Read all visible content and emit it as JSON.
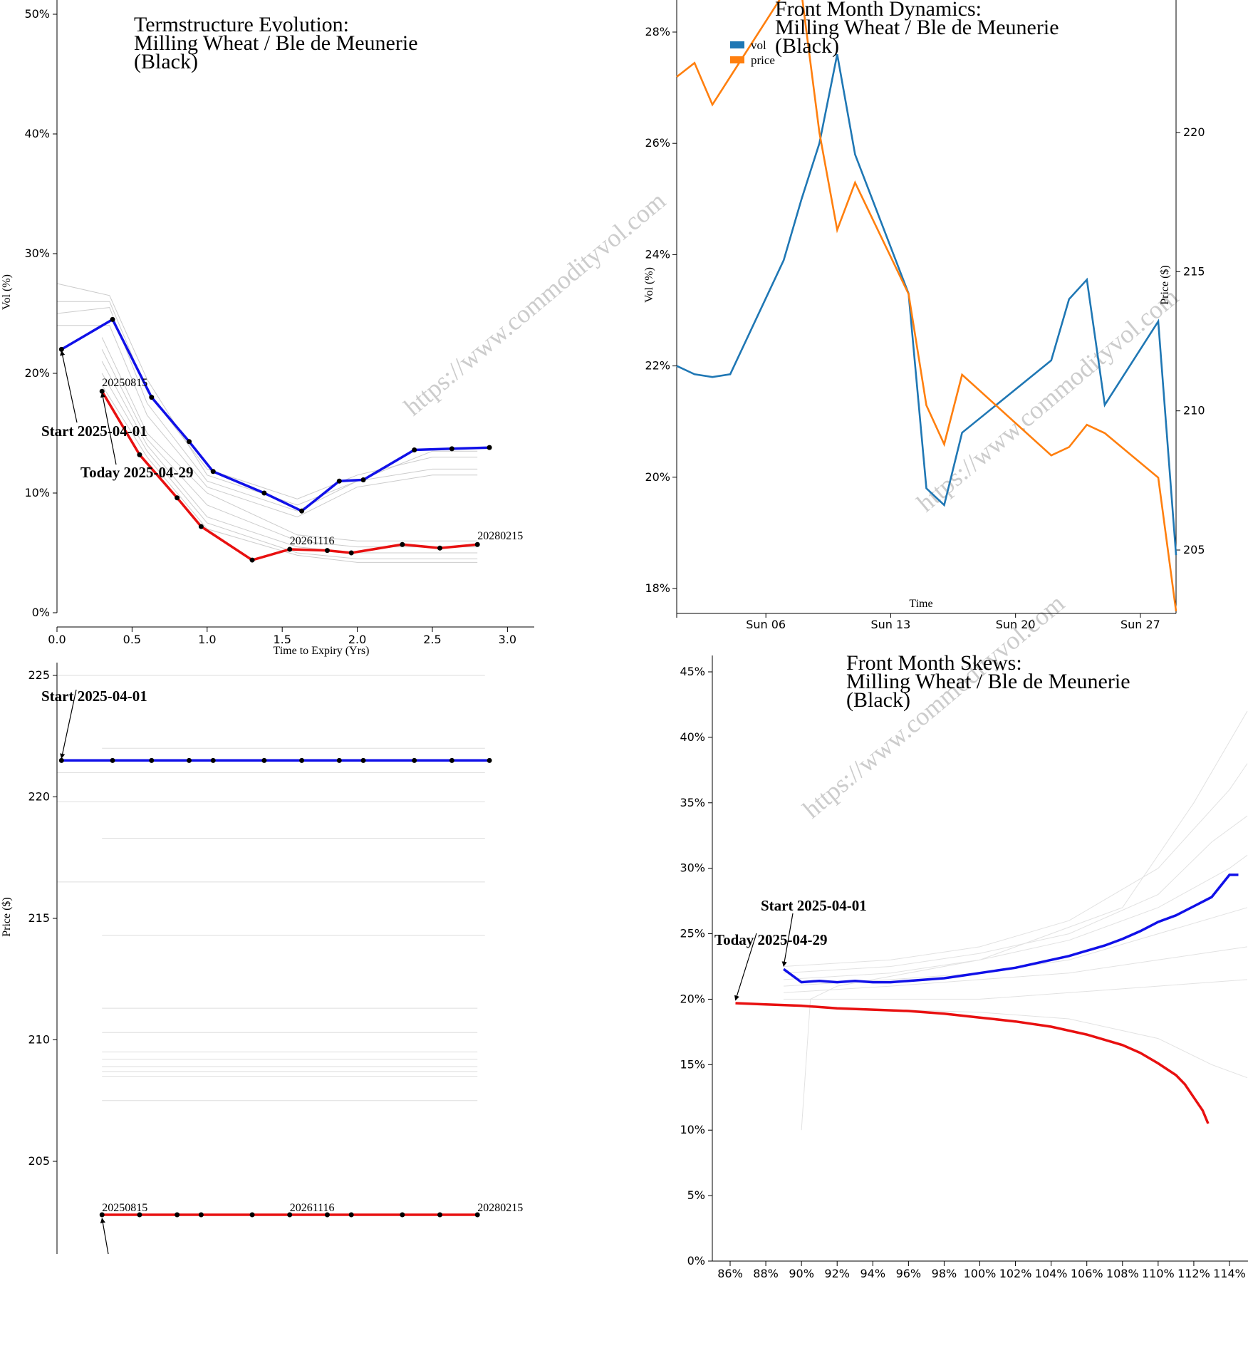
{
  "watermark": "https://www.commodityvol.com",
  "colors": {
    "start": "#1010e8",
    "today": "#e81010",
    "history": "#cccccc",
    "vol": "#1f77b4",
    "price": "#ff7f0e"
  },
  "chart_data": [
    {
      "id": "ts",
      "type": "line",
      "title": [
        "Termstructure Evolution:",
        "Milling Wheat / Ble de Meunerie",
        "(Black)"
      ],
      "xlabel": "Time to Expiry (Yrs)",
      "ylabel": "Vol (%)",
      "xlim": [
        0,
        3.15
      ],
      "ylim": [
        0,
        50
      ],
      "xticks": [
        "0.0",
        "0.5",
        "1.0",
        "1.5",
        "2.0",
        "2.5",
        "3.0"
      ],
      "yticks": [
        "0%",
        "10%",
        "20%",
        "30%",
        "40%",
        "50%"
      ],
      "series": [
        {
          "role": "start",
          "x": [
            0.03,
            0.37,
            0.63,
            0.88,
            1.04,
            1.38,
            1.63,
            1.88,
            2.04,
            2.38,
            2.63,
            2.88
          ],
          "y": [
            22.0,
            24.5,
            18.0,
            14.3,
            11.8,
            10.0,
            8.5,
            11.0,
            11.1,
            13.6,
            13.7,
            13.8
          ]
        },
        {
          "role": "today",
          "x": [
            0.3,
            0.55,
            0.8,
            0.96,
            1.3,
            1.55,
            1.8,
            1.96,
            2.3,
            2.55,
            2.8
          ],
          "y": [
            18.5,
            13.2,
            9.6,
            7.2,
            4.4,
            5.3,
            5.2,
            5.0,
            5.7,
            5.4,
            5.7
          ]
        }
      ],
      "history": [
        [
          [
            0.0,
            27.5
          ],
          [
            0.35,
            26.5
          ],
          [
            0.6,
            19.5
          ],
          [
            1.0,
            11.5
          ],
          [
            1.6,
            9.0
          ],
          [
            2.0,
            11.0
          ],
          [
            2.5,
            13.5
          ],
          [
            2.8,
            13.5
          ]
        ],
        [
          [
            0.0,
            26.0
          ],
          [
            0.35,
            26.0
          ],
          [
            0.6,
            18.5
          ],
          [
            1.0,
            12.0
          ],
          [
            1.6,
            9.5
          ],
          [
            2.0,
            11.5
          ],
          [
            2.5,
            13.0
          ],
          [
            2.8,
            13.0
          ]
        ],
        [
          [
            0.0,
            25.0
          ],
          [
            0.35,
            25.5
          ],
          [
            0.6,
            17.5
          ],
          [
            1.0,
            11.0
          ],
          [
            1.6,
            8.5
          ],
          [
            2.0,
            11.0
          ],
          [
            2.5,
            12.0
          ],
          [
            2.8,
            12.0
          ]
        ],
        [
          [
            0.0,
            24.0
          ],
          [
            0.35,
            24.0
          ],
          [
            0.6,
            16.5
          ],
          [
            1.0,
            10.5
          ],
          [
            1.6,
            8.0
          ],
          [
            2.0,
            10.5
          ],
          [
            2.5,
            11.5
          ],
          [
            2.8,
            11.5
          ]
        ],
        [
          [
            0.3,
            23.0
          ],
          [
            0.6,
            15.0
          ],
          [
            1.0,
            10.0
          ],
          [
            1.6,
            6.5
          ],
          [
            2.0,
            6.0
          ],
          [
            2.8,
            6.0
          ]
        ],
        [
          [
            0.3,
            22.0
          ],
          [
            0.6,
            14.5
          ],
          [
            1.0,
            9.0
          ],
          [
            1.6,
            6.0
          ],
          [
            2.0,
            5.5
          ],
          [
            2.8,
            5.5
          ]
        ],
        [
          [
            0.3,
            21.0
          ],
          [
            0.6,
            14.0
          ],
          [
            1.0,
            8.0
          ],
          [
            1.6,
            5.5
          ],
          [
            2.0,
            5.0
          ],
          [
            2.8,
            5.0
          ]
        ],
        [
          [
            0.3,
            20.0
          ],
          [
            0.6,
            13.5
          ],
          [
            1.0,
            7.5
          ],
          [
            1.6,
            5.0
          ],
          [
            2.0,
            4.5
          ],
          [
            2.8,
            4.5
          ]
        ],
        [
          [
            0.3,
            19.0
          ],
          [
            0.6,
            13.0
          ],
          [
            1.0,
            7.0
          ],
          [
            1.6,
            4.8
          ],
          [
            2.0,
            4.2
          ],
          [
            2.8,
            4.2
          ]
        ]
      ],
      "annotations": {
        "start_label": "Start 2025-04-01",
        "today_label": "Today 2025-04-29",
        "expiry_labels": [
          {
            "text": "20250815",
            "x": 0.3,
            "y": 18.5
          },
          {
            "text": "20261116",
            "x": 1.55,
            "y": 5.3
          },
          {
            "text": "20280215",
            "x": 2.8,
            "y": 5.7
          }
        ]
      }
    },
    {
      "id": "fm",
      "type": "line",
      "title": [
        "Front Month Dynamics:",
        "Milling Wheat / Ble de Meunerie",
        "(Black)"
      ],
      "xlabel": "Time",
      "ylabel_left": "Vol (%)",
      "ylabel_right": "Price ($)",
      "x_range_days": [
        1,
        29
      ],
      "x_tick_labels": [
        {
          "day": 6,
          "label": "Sun 06"
        },
        {
          "day": 13,
          "label": "Sun 13"
        },
        {
          "day": 20,
          "label": "Sun 20"
        },
        {
          "day": 27,
          "label": "Sun 27"
        }
      ],
      "ylim_left": [
        17.6,
        28.6
      ],
      "yticks_left": [
        {
          "v": 18,
          "label": "18%"
        },
        {
          "v": 20,
          "label": "20%"
        },
        {
          "v": 22,
          "label": "22%"
        },
        {
          "v": 24,
          "label": "24%"
        },
        {
          "v": 26,
          "label": "26%"
        },
        {
          "v": 28,
          "label": "28%"
        }
      ],
      "ylim_right": [
        202.8,
        224.8
      ],
      "yticks_right": [
        205,
        210,
        215,
        220
      ],
      "legend": [
        "vol",
        "price"
      ],
      "series": [
        {
          "name": "vol",
          "axis": "left",
          "x": [
            1,
            2,
            3,
            4,
            7,
            8,
            9,
            10,
            11,
            14,
            15,
            16,
            17,
            22,
            23,
            24,
            25,
            28,
            29
          ],
          "y": [
            22.0,
            21.85,
            21.8,
            21.85,
            23.9,
            25.0,
            26.0,
            27.6,
            25.8,
            23.3,
            19.8,
            19.5,
            20.8,
            22.1,
            23.2,
            23.55,
            21.3,
            22.8,
            18.6
          ]
        },
        {
          "name": "price",
          "axis": "right",
          "x": [
            1,
            2,
            3,
            7,
            8,
            9,
            10,
            11,
            14,
            15,
            16,
            17,
            22,
            23,
            24,
            25,
            28,
            29
          ],
          "y": [
            222.0,
            222.5,
            221.0,
            225.0,
            225.0,
            220.0,
            216.5,
            218.2,
            214.2,
            210.2,
            208.8,
            211.3,
            208.4,
            208.7,
            209.5,
            209.2,
            207.6,
            202.8
          ]
        }
      ]
    },
    {
      "id": "price_ts",
      "type": "line",
      "ylabel": "Price ($)",
      "xlim": [
        0,
        3.15
      ],
      "ylim": [
        201.5,
        226
      ],
      "yticks": [
        205,
        210,
        215,
        220,
        225
      ],
      "series": [
        {
          "role": "start",
          "x": [
            0.03,
            0.37,
            0.63,
            0.88,
            1.04,
            1.38,
            1.63,
            1.88,
            2.04,
            2.38,
            2.63,
            2.88
          ],
          "y": [
            221.5,
            221.5,
            221.5,
            221.5,
            221.5,
            221.5,
            221.5,
            221.5,
            221.5,
            221.5,
            221.5,
            221.5
          ]
        },
        {
          "role": "today",
          "x": [
            0.3,
            0.55,
            0.8,
            0.96,
            1.3,
            1.55,
            1.8,
            1.96,
            2.3,
            2.55,
            2.8
          ],
          "y": [
            202.8,
            202.8,
            202.8,
            202.8,
            202.8,
            202.8,
            202.8,
            202.8,
            202.8,
            202.8,
            202.8
          ]
        }
      ],
      "history_levels": [
        {
          "y": 225.0,
          "x0": 0.0,
          "x1": 2.85
        },
        {
          "y": 222.0,
          "x0": 0.3,
          "x1": 2.85
        },
        {
          "y": 221.0,
          "x0": 0.0,
          "x1": 2.85
        },
        {
          "y": 219.8,
          "x0": 0.0,
          "x1": 2.85
        },
        {
          "y": 218.3,
          "x0": 0.3,
          "x1": 2.85
        },
        {
          "y": 216.5,
          "x0": 0.0,
          "x1": 2.85
        },
        {
          "y": 214.3,
          "x0": 0.3,
          "x1": 2.85
        },
        {
          "y": 211.3,
          "x0": 0.3,
          "x1": 2.8
        },
        {
          "y": 210.3,
          "x0": 0.3,
          "x1": 2.8
        },
        {
          "y": 209.5,
          "x0": 0.3,
          "x1": 2.8
        },
        {
          "y": 209.2,
          "x0": 0.3,
          "x1": 2.8
        },
        {
          "y": 208.9,
          "x0": 0.3,
          "x1": 2.8
        },
        {
          "y": 208.7,
          "x0": 0.3,
          "x1": 2.8
        },
        {
          "y": 208.5,
          "x0": 0.3,
          "x1": 2.8
        },
        {
          "y": 207.5,
          "x0": 0.3,
          "x1": 2.8
        }
      ],
      "annotations": {
        "start_label": "Start 2025-04-01",
        "expiry_labels": [
          {
            "text": "20250815",
            "x": 0.3,
            "y": 202.8
          },
          {
            "text": "20261116",
            "x": 1.55,
            "y": 202.8
          },
          {
            "text": "20280215",
            "x": 2.8,
            "y": 202.8
          }
        ]
      }
    },
    {
      "id": "skew",
      "type": "line",
      "title": [
        "Front Month Skews:",
        "Milling Wheat / Ble de Meunerie",
        "(Black)"
      ],
      "xlim": [
        85,
        115
      ],
      "ylim": [
        0,
        46
      ],
      "xticks": [
        "86%",
        "88%",
        "90%",
        "92%",
        "94%",
        "96%",
        "98%",
        "100%",
        "102%",
        "104%",
        "106%",
        "108%",
        "110%",
        "112%",
        "114%"
      ],
      "yticks": [
        "0%",
        "5%",
        "10%",
        "15%",
        "20%",
        "25%",
        "30%",
        "35%",
        "40%",
        "45%"
      ],
      "series": [
        {
          "role": "start",
          "x": [
            89,
            90,
            91,
            92,
            93,
            94,
            95,
            96,
            97,
            98,
            99,
            100,
            101,
            102,
            103,
            104,
            105,
            106,
            107,
            108,
            109,
            110,
            111,
            112,
            113,
            114,
            114.5
          ],
          "y": [
            22.3,
            21.3,
            21.4,
            21.3,
            21.4,
            21.3,
            21.3,
            21.4,
            21.5,
            21.6,
            21.8,
            22.0,
            22.2,
            22.4,
            22.7,
            23.0,
            23.3,
            23.7,
            24.1,
            24.6,
            25.2,
            25.9,
            26.4,
            27.1,
            27.8,
            29.5,
            29.5
          ]
        },
        {
          "role": "today",
          "x": [
            86.3,
            88,
            90,
            92,
            94,
            96,
            98,
            100,
            102,
            104,
            106,
            107,
            108,
            109,
            110,
            111,
            111.5,
            112,
            112.5,
            112.8
          ],
          "y": [
            19.7,
            19.6,
            19.5,
            19.3,
            19.2,
            19.1,
            18.9,
            18.6,
            18.3,
            17.9,
            17.3,
            16.9,
            16.5,
            15.9,
            15.1,
            14.2,
            13.5,
            12.5,
            11.5,
            10.5
          ]
        }
      ],
      "history": [
        [
          [
            89,
            22.5
          ],
          [
            95,
            23
          ],
          [
            100,
            24
          ],
          [
            105,
            26
          ],
          [
            110,
            30
          ],
          [
            112,
            33
          ],
          [
            114,
            36
          ],
          [
            115,
            38
          ]
        ],
        [
          [
            89,
            22
          ],
          [
            95,
            22.5
          ],
          [
            100,
            23.5
          ],
          [
            105,
            25
          ],
          [
            110,
            28
          ],
          [
            113,
            32
          ],
          [
            115,
            34
          ]
        ],
        [
          [
            89,
            21.5
          ],
          [
            95,
            22
          ],
          [
            100,
            23
          ],
          [
            105,
            24.5
          ],
          [
            110,
            27
          ],
          [
            114,
            30
          ],
          [
            115,
            31
          ]
        ],
        [
          [
            89,
            21
          ],
          [
            95,
            21.5
          ],
          [
            100,
            22
          ],
          [
            105,
            23
          ],
          [
            110,
            25
          ],
          [
            115,
            27
          ]
        ],
        [
          [
            89,
            20.5
          ],
          [
            95,
            21
          ],
          [
            100,
            21.5
          ],
          [
            105,
            22
          ],
          [
            110,
            23
          ],
          [
            115,
            24
          ]
        ],
        [
          [
            89,
            20
          ],
          [
            95,
            20
          ],
          [
            100,
            20
          ],
          [
            105,
            20.5
          ],
          [
            110,
            21
          ],
          [
            115,
            21.5
          ]
        ],
        [
          [
            89,
            19.5
          ],
          [
            95,
            19.2
          ],
          [
            100,
            19
          ],
          [
            105,
            18.5
          ],
          [
            110,
            17
          ],
          [
            113,
            15
          ],
          [
            115,
            14
          ]
        ],
        [
          [
            90,
            10
          ],
          [
            90.5,
            20
          ],
          [
            92,
            21
          ],
          [
            100,
            23
          ],
          [
            108,
            27
          ],
          [
            112,
            35
          ],
          [
            115,
            42
          ]
        ]
      ],
      "annotations": {
        "start_label": "Start 2025-04-01",
        "today_label": "Today 2025-04-29"
      }
    }
  ]
}
